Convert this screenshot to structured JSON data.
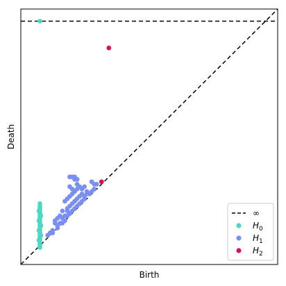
{
  "chart_data": {
    "type": "scatter",
    "title": "",
    "xlabel": "Birth",
    "ylabel": "Death",
    "xlim": [
      -0.05,
      1.0
    ],
    "ylim": [
      -0.05,
      1.0
    ],
    "grid": false,
    "ticks_shown": false,
    "infinity_level": 0.95,
    "legend": {
      "position": "bottom-right",
      "entries": [
        {
          "label": "∞",
          "kind": "dashed-line",
          "color": "#000000"
        },
        {
          "label": "H",
          "sub": "0",
          "kind": "marker",
          "color": "#4fd6c4"
        },
        {
          "label": "H",
          "sub": "1",
          "kind": "marker",
          "color": "#7b8ff0"
        },
        {
          "label": "H",
          "sub": "2",
          "kind": "marker",
          "color": "#d0145f"
        }
      ]
    },
    "reference_lines": [
      {
        "name": "diagonal",
        "style": "dashed",
        "from": [
          -0.05,
          -0.05
        ],
        "to": [
          1.0,
          1.0
        ]
      },
      {
        "name": "infinity",
        "style": "dashed",
        "y": 0.95
      }
    ],
    "series": [
      {
        "name": "H0",
        "color": "#4fd6c4",
        "points": [
          [
            0.028,
            0.95
          ],
          [
            0.028,
            0.02
          ],
          [
            0.028,
            0.03
          ],
          [
            0.028,
            0.04
          ],
          [
            0.028,
            0.05
          ],
          [
            0.028,
            0.06
          ],
          [
            0.028,
            0.07
          ],
          [
            0.028,
            0.08
          ],
          [
            0.028,
            0.09
          ],
          [
            0.028,
            0.1
          ],
          [
            0.028,
            0.11
          ],
          [
            0.028,
            0.12
          ],
          [
            0.028,
            0.13
          ],
          [
            0.028,
            0.14
          ],
          [
            0.028,
            0.15
          ],
          [
            0.028,
            0.16
          ],
          [
            0.028,
            0.17
          ],
          [
            0.028,
            0.18
          ],
          [
            0.028,
            0.19
          ],
          [
            0.028,
            0.2
          ],
          [
            0.024,
            0.05
          ],
          [
            0.032,
            0.07
          ],
          [
            0.024,
            0.09
          ],
          [
            0.032,
            0.11
          ],
          [
            0.024,
            0.13
          ],
          [
            0.032,
            0.15
          ],
          [
            0.024,
            0.17
          ]
        ]
      },
      {
        "name": "H1",
        "color": "#7b8ff0",
        "points": [
          [
            0.06,
            0.07
          ],
          [
            0.07,
            0.08
          ],
          [
            0.08,
            0.09
          ],
          [
            0.08,
            0.08
          ],
          [
            0.1,
            0.1
          ],
          [
            0.1,
            0.11
          ],
          [
            0.11,
            0.12
          ],
          [
            0.12,
            0.12
          ],
          [
            0.12,
            0.14
          ],
          [
            0.13,
            0.13
          ],
          [
            0.13,
            0.15
          ],
          [
            0.14,
            0.15
          ],
          [
            0.14,
            0.17
          ],
          [
            0.15,
            0.16
          ],
          [
            0.15,
            0.19
          ],
          [
            0.16,
            0.17
          ],
          [
            0.16,
            0.2
          ],
          [
            0.17,
            0.18
          ],
          [
            0.17,
            0.21
          ],
          [
            0.18,
            0.19
          ],
          [
            0.18,
            0.22
          ],
          [
            0.19,
            0.2
          ],
          [
            0.19,
            0.23
          ],
          [
            0.2,
            0.21
          ],
          [
            0.2,
            0.24
          ],
          [
            0.21,
            0.22
          ],
          [
            0.21,
            0.23
          ],
          [
            0.22,
            0.24
          ],
          [
            0.22,
            0.25
          ],
          [
            0.23,
            0.24
          ],
          [
            0.24,
            0.25
          ],
          [
            0.25,
            0.26
          ],
          [
            0.13,
            0.21
          ],
          [
            0.14,
            0.22
          ],
          [
            0.15,
            0.23
          ],
          [
            0.16,
            0.24
          ],
          [
            0.17,
            0.25
          ],
          [
            0.18,
            0.26
          ],
          [
            0.16,
            0.26
          ],
          [
            0.18,
            0.28
          ],
          [
            0.17,
            0.3
          ],
          [
            0.18,
            0.3
          ],
          [
            0.15,
            0.31
          ],
          [
            0.16,
            0.31
          ],
          [
            0.17,
            0.31
          ],
          [
            0.15,
            0.27
          ],
          [
            0.19,
            0.27
          ],
          [
            0.2,
            0.26
          ],
          [
            0.25,
            0.28
          ],
          [
            0.26,
            0.28
          ],
          [
            0.24,
            0.29
          ],
          [
            0.21,
            0.27
          ],
          [
            0.14,
            0.18
          ],
          [
            0.12,
            0.17
          ],
          [
            0.11,
            0.15
          ],
          [
            0.09,
            0.13
          ],
          [
            0.1,
            0.14
          ],
          [
            0.09,
            0.12
          ]
        ]
      },
      {
        "name": "H2",
        "color": "#d0145f",
        "points": [
          [
            0.28,
            0.29
          ],
          [
            0.31,
            0.84
          ]
        ]
      }
    ]
  }
}
